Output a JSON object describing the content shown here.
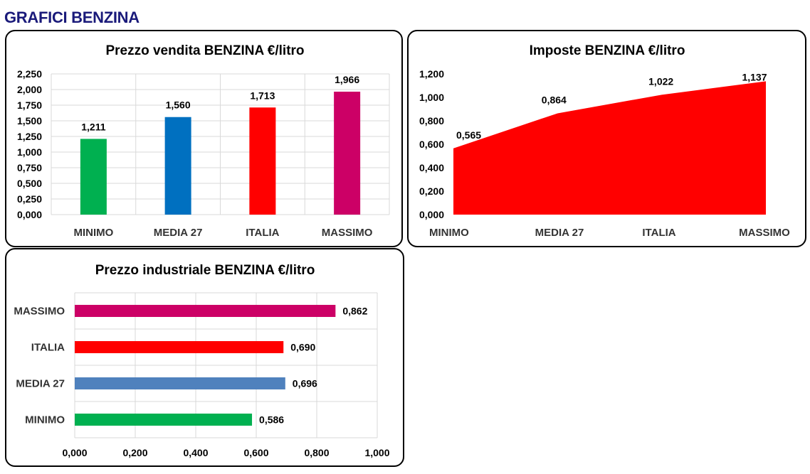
{
  "page_title": "GRAFICI BENZINA",
  "colors": {
    "green": "#00b050",
    "blue": "#0070c0",
    "red": "#ff0000",
    "magenta": "#cc0066",
    "steel_blue": "#4f81bd",
    "title_navy": "#1a1a7a"
  },
  "chart_data": [
    {
      "type": "bar",
      "title": "Prezzo vendita BENZINA €/litro",
      "categories": [
        "MINIMO",
        "MEDIA 27",
        "ITALIA",
        "MASSIMO"
      ],
      "values": [
        1.211,
        1.56,
        1.713,
        1.966
      ],
      "value_labels": [
        "1,211",
        "1,560",
        "1,713",
        "1,966"
      ],
      "bar_colors": [
        "#00b050",
        "#0070c0",
        "#ff0000",
        "#cc0066"
      ],
      "ylim": [
        0,
        2.25
      ],
      "yticks": [
        0,
        0.25,
        0.5,
        0.75,
        1.0,
        1.25,
        1.5,
        1.75,
        2.0,
        2.25
      ],
      "ytick_labels": [
        "0,000",
        "0,250",
        "0,500",
        "0,750",
        "1,000",
        "1,250",
        "1,500",
        "1,750",
        "2,000",
        "2,250"
      ],
      "grid": true,
      "xlabel": "",
      "ylabel": ""
    },
    {
      "type": "area",
      "title": "Imposte BENZINA €/litro",
      "categories": [
        "MINIMO",
        "MEDIA 27",
        "ITALIA",
        "MASSIMO"
      ],
      "values": [
        0.565,
        0.864,
        1.022,
        1.137
      ],
      "value_labels": [
        "0,565",
        "0,864",
        "1,022",
        "1,137"
      ],
      "color": "#ff0000",
      "ylim": [
        0,
        1.2
      ],
      "yticks": [
        0,
        0.2,
        0.4,
        0.6,
        0.8,
        1.0,
        1.2
      ],
      "ytick_labels": [
        "0,000",
        "0,200",
        "0,400",
        "0,600",
        "0,800",
        "1,000",
        "1,200"
      ],
      "grid": false,
      "xlabel": "",
      "ylabel": ""
    },
    {
      "type": "bar",
      "orientation": "horizontal",
      "title": "Prezzo industriale BENZINA €/litro",
      "categories": [
        "MASSIMO",
        "ITALIA",
        "MEDIA 27",
        "MINIMO"
      ],
      "values": [
        0.862,
        0.69,
        0.696,
        0.586
      ],
      "value_labels": [
        "0,862",
        "0,690",
        "0,696",
        "0,586"
      ],
      "bar_colors": [
        "#cc0066",
        "#ff0000",
        "#4f81bd",
        "#00b050"
      ],
      "xlim": [
        0,
        1.0
      ],
      "xticks": [
        0,
        0.2,
        0.4,
        0.6,
        0.8,
        1.0
      ],
      "xtick_labels": [
        "0,000",
        "0,200",
        "0,400",
        "0,600",
        "0,800",
        "1,000"
      ],
      "grid": true,
      "xlabel": "",
      "ylabel": ""
    }
  ]
}
